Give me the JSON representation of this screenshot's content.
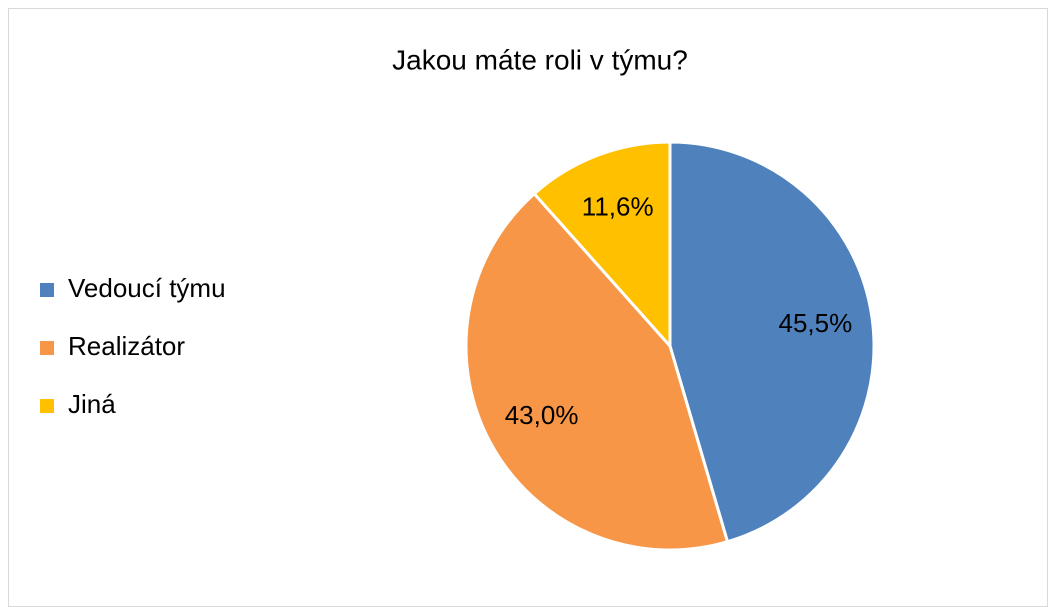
{
  "chart_data": {
    "type": "pie",
    "title": "Jakou máte roli v týmu?",
    "categories": [
      "Vedoucí týmu",
      "Realizátor",
      "Jiná"
    ],
    "values": [
      45.5,
      43.0,
      11.6
    ],
    "value_labels": [
      "45,5%",
      "43,0%",
      "11,6%"
    ],
    "colors": [
      "#4f81bd",
      "#f79646",
      "#ffc000"
    ],
    "legend": "left"
  }
}
